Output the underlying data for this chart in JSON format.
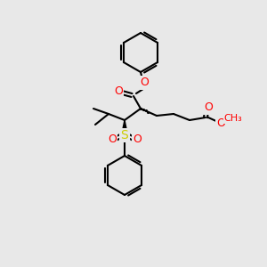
{
  "bg_color": "#e8e8e8",
  "bond_color": "#000000",
  "bond_width": 1.5,
  "atom_colors": {
    "O": "#ff0000",
    "S": "#cccc00",
    "C": "#000000"
  },
  "font_size": 8,
  "fig_size": [
    3.0,
    3.0
  ],
  "dpi": 100
}
